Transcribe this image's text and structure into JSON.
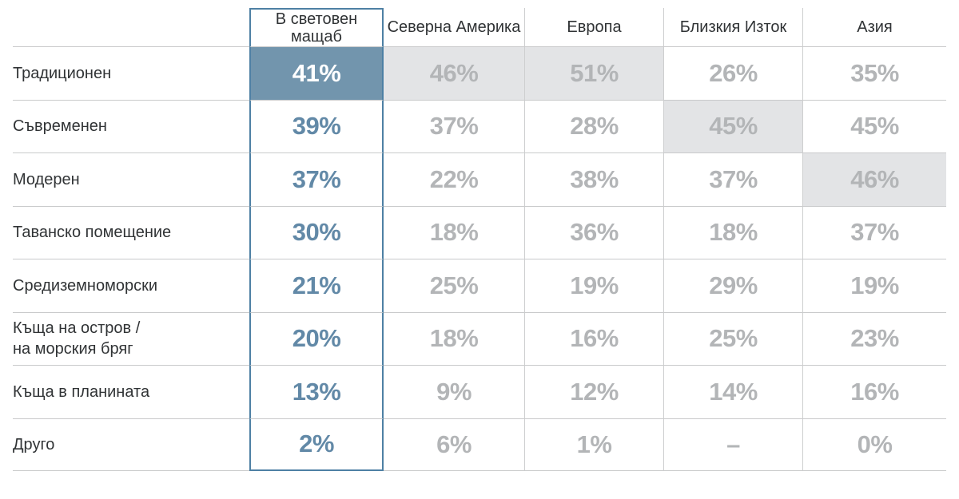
{
  "table": {
    "header": {
      "global": "В световен\nмащаб",
      "regions": [
        "Северна Америка",
        "Европа",
        "Близкия Изток",
        "Азия"
      ]
    },
    "rows": [
      {
        "label": "Традиционен",
        "global": "41%",
        "global_hl": true,
        "cells": [
          {
            "text": "46%",
            "hl": true
          },
          {
            "text": "51%",
            "hl": true
          },
          {
            "text": "26%",
            "hl": false
          },
          {
            "text": "35%",
            "hl": false
          }
        ]
      },
      {
        "label": "Съвременен",
        "global": "39%",
        "global_hl": false,
        "cells": [
          {
            "text": "37%",
            "hl": false
          },
          {
            "text": "28%",
            "hl": false
          },
          {
            "text": "45%",
            "hl": true
          },
          {
            "text": "45%",
            "hl": false
          }
        ]
      },
      {
        "label": "Модерен",
        "global": "37%",
        "global_hl": false,
        "cells": [
          {
            "text": "22%",
            "hl": false
          },
          {
            "text": "38%",
            "hl": false
          },
          {
            "text": "37%",
            "hl": false
          },
          {
            "text": "46%",
            "hl": true
          }
        ]
      },
      {
        "label": "Таванско помещение",
        "global": "30%",
        "global_hl": false,
        "cells": [
          {
            "text": "18%",
            "hl": false
          },
          {
            "text": "36%",
            "hl": false
          },
          {
            "text": "18%",
            "hl": false
          },
          {
            "text": "37%",
            "hl": false
          }
        ]
      },
      {
        "label": "Средиземноморски",
        "global": "21%",
        "global_hl": false,
        "cells": [
          {
            "text": "25%",
            "hl": false
          },
          {
            "text": "19%",
            "hl": false
          },
          {
            "text": "29%",
            "hl": false
          },
          {
            "text": "19%",
            "hl": false
          }
        ]
      },
      {
        "label": "Къща на остров /\nна морския бряг",
        "global": "20%",
        "global_hl": false,
        "cells": [
          {
            "text": "18%",
            "hl": false
          },
          {
            "text": "16%",
            "hl": false
          },
          {
            "text": "25%",
            "hl": false
          },
          {
            "text": "23%",
            "hl": false
          }
        ]
      },
      {
        "label": "Къща в планината",
        "global": "13%",
        "global_hl": false,
        "cells": [
          {
            "text": "9%",
            "hl": false
          },
          {
            "text": "12%",
            "hl": false
          },
          {
            "text": "14%",
            "hl": false
          },
          {
            "text": "16%",
            "hl": false
          }
        ]
      },
      {
        "label": "Друго",
        "global": "2%",
        "global_hl": false,
        "cells": [
          {
            "text": "6%",
            "hl": false
          },
          {
            "text": "1%",
            "hl": false
          },
          {
            "text": "–",
            "hl": false
          },
          {
            "text": "0%",
            "hl": false
          }
        ]
      }
    ]
  },
  "colors": {
    "accent_blue": "#4e80a4",
    "blue_fill": "#7295ad",
    "blue_text": "#6289a7",
    "muted_value": "#b3b5b7",
    "highlight_bg": "#e3e4e6",
    "grid_line": "#c9cacb",
    "sep_line": "#cdcecf",
    "text_dark": "#303335"
  },
  "chart_data": {
    "type": "table",
    "columns": [
      "",
      "В световен мащаб",
      "Северна Америка",
      "Европа",
      "Близкия Изток",
      "Азия"
    ],
    "units": "%",
    "rows": [
      {
        "label": "Традиционен",
        "values": [
          41,
          46,
          51,
          26,
          35
        ]
      },
      {
        "label": "Съвременен",
        "values": [
          39,
          37,
          28,
          45,
          45
        ]
      },
      {
        "label": "Модерен",
        "values": [
          37,
          22,
          38,
          37,
          46
        ]
      },
      {
        "label": "Таванско помещение",
        "values": [
          30,
          18,
          36,
          18,
          37
        ]
      },
      {
        "label": "Средиземноморски",
        "values": [
          21,
          25,
          19,
          29,
          19
        ]
      },
      {
        "label": "Къща на остров / на морския бряг",
        "values": [
          20,
          18,
          16,
          25,
          23
        ]
      },
      {
        "label": "Къща в планината",
        "values": [
          13,
          9,
          12,
          14,
          16
        ]
      },
      {
        "label": "Друго",
        "values": [
          2,
          6,
          1,
          null,
          0
        ]
      }
    ],
    "highlighted_cells": [
      {
        "row": "Традиционен",
        "column": "В световен мащаб",
        "style": "blue-fill"
      },
      {
        "row": "Традиционен",
        "column": "Северна Америка",
        "style": "gray-fill"
      },
      {
        "row": "Традиционен",
        "column": "Европа",
        "style": "gray-fill"
      },
      {
        "row": "Съвременен",
        "column": "Близкия Изток",
        "style": "gray-fill"
      },
      {
        "row": "Модерен",
        "column": "Азия",
        "style": "gray-fill"
      }
    ]
  }
}
